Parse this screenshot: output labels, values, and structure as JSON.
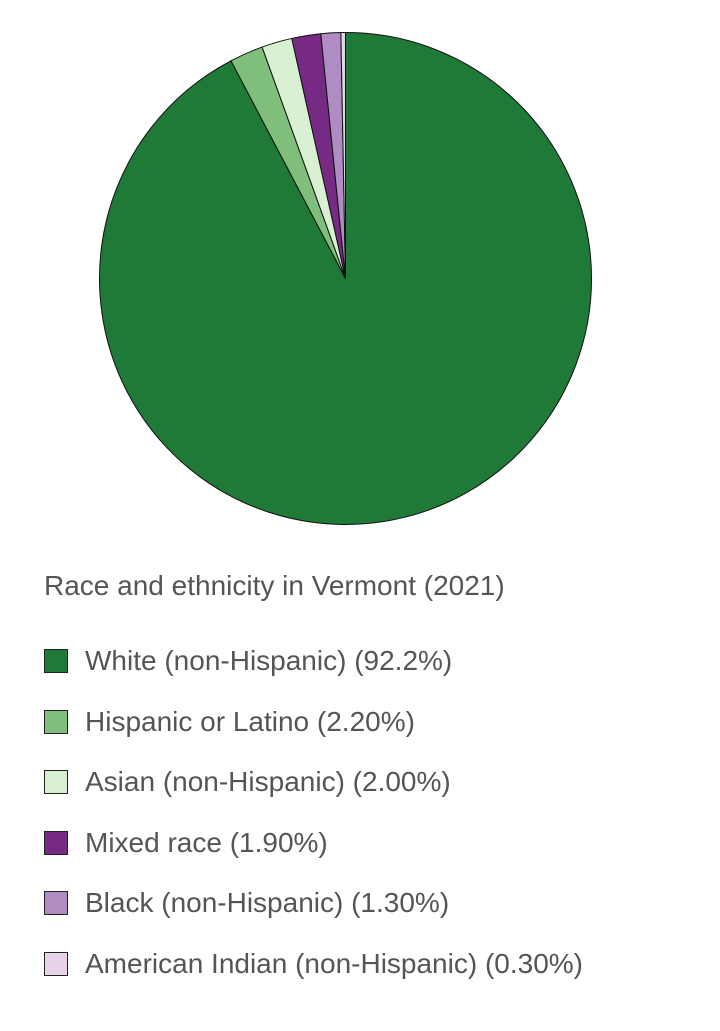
{
  "chart_data": {
    "type": "pie",
    "title": "Race and ethnicity in Vermont (2021)",
    "legend_position": "bottom",
    "series": [
      {
        "name": "White (non-Hispanic)",
        "value": 92.2,
        "label": "White (non-Hispanic) (92.2%)",
        "color": "#1f7a38"
      },
      {
        "name": "Hispanic or Latino",
        "value": 2.2,
        "label": "Hispanic or Latino (2.20%)",
        "color": "#7fbf7b"
      },
      {
        "name": "Asian (non-Hispanic)",
        "value": 2.0,
        "label": "Asian (non-Hispanic) (2.00%)",
        "color": "#d9f0d3"
      },
      {
        "name": "Mixed race",
        "value": 1.9,
        "label": "Mixed race (1.90%)",
        "color": "#762a83"
      },
      {
        "name": "Black (non-Hispanic)",
        "value": 1.3,
        "label": "Black (non-Hispanic) (1.30%)",
        "color": "#af8dc3"
      },
      {
        "name": "American Indian (non-Hispanic)",
        "value": 0.3,
        "label": "American Indian (non-Hispanic) (0.30%)",
        "color": "#e7d4e8"
      }
    ]
  }
}
